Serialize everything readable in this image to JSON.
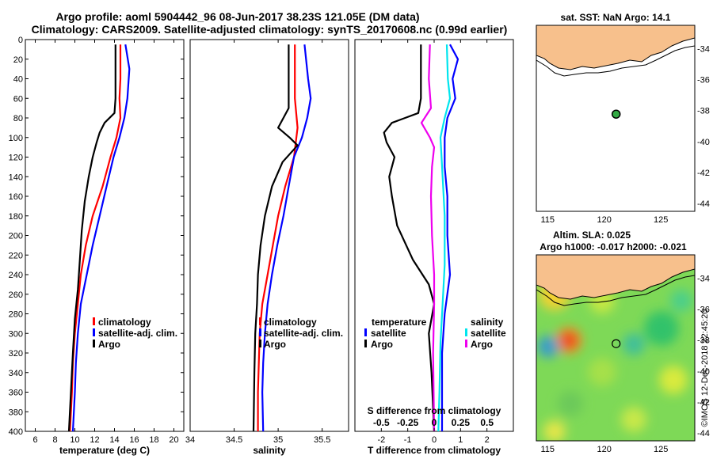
{
  "title": {
    "line1": "Argo profile: aoml 5904442_96 08-Jun-2017 38.23S 121.05E (DM data)",
    "line2": "Climatology: CARS2009. Satellite-adjusted climatology: synTS_20170608.nc (0.99d earlier)"
  },
  "colors": {
    "climatology": "#ff0000",
    "satellite_adj": "#0000ff",
    "argo": "#000000",
    "sat_salinity": "#00e5ee",
    "argo_salinity": "#ee00ee",
    "land": "#f7c08c"
  },
  "chart_data": [
    {
      "type": "line",
      "id": "temperature",
      "xlabel": "temperature (deg C)",
      "ylabel": "",
      "xlim": [
        5,
        21
      ],
      "ylim": [
        400,
        0
      ],
      "xticks": [
        6,
        8,
        10,
        12,
        14,
        16,
        18,
        20
      ],
      "yticks": [
        0,
        20,
        40,
        60,
        80,
        100,
        120,
        140,
        160,
        180,
        200,
        220,
        240,
        260,
        280,
        300,
        320,
        340,
        360,
        380,
        400
      ],
      "legend": [
        "climatology",
        "satellite-adj. clim.",
        "Argo"
      ],
      "series": [
        {
          "name": "climatology",
          "color": "#ff0000",
          "points": [
            [
              14.6,
              5
            ],
            [
              14.6,
              40
            ],
            [
              14.5,
              60
            ],
            [
              14.6,
              80
            ],
            [
              14.2,
              100
            ],
            [
              13.6,
              120
            ],
            [
              12.8,
              150
            ],
            [
              11.8,
              180
            ],
            [
              11.1,
              210
            ],
            [
              10.6,
              240
            ],
            [
              10.3,
              270
            ],
            [
              10.0,
              300
            ],
            [
              9.8,
              330
            ],
            [
              9.7,
              360
            ],
            [
              9.5,
              400
            ]
          ]
        },
        {
          "name": "satellite-adj. clim.",
          "color": "#0000ff",
          "points": [
            [
              15.1,
              5
            ],
            [
              15.5,
              30
            ],
            [
              15.3,
              60
            ],
            [
              15.0,
              80
            ],
            [
              14.5,
              100
            ],
            [
              13.9,
              120
            ],
            [
              13.2,
              150
            ],
            [
              12.5,
              180
            ],
            [
              11.8,
              210
            ],
            [
              11.2,
              240
            ],
            [
              10.6,
              270
            ],
            [
              10.3,
              300
            ],
            [
              10.1,
              330
            ],
            [
              10.0,
              360
            ],
            [
              9.8,
              400
            ]
          ]
        },
        {
          "name": "Argo",
          "color": "#000000",
          "points": [
            [
              14.1,
              5
            ],
            [
              14.1,
              60
            ],
            [
              14.0,
              75
            ],
            [
              13.0,
              85
            ],
            [
              12.5,
              95
            ],
            [
              12.2,
              105
            ],
            [
              11.8,
              120
            ],
            [
              11.4,
              140
            ],
            [
              11.0,
              165
            ],
            [
              10.7,
              195
            ],
            [
              10.5,
              225
            ],
            [
              10.3,
              255
            ],
            [
              10.0,
              285
            ],
            [
              9.8,
              320
            ],
            [
              9.6,
              360
            ],
            [
              9.4,
              400
            ]
          ]
        }
      ]
    },
    {
      "type": "line",
      "id": "salinity",
      "xlabel": "salinity",
      "ylabel": "",
      "xlim": [
        34,
        35.8
      ],
      "ylim": [
        400,
        0
      ],
      "xticks": [
        34,
        34.5,
        35,
        35.5
      ],
      "xticklabels": [
        "34",
        "34.5",
        "35",
        "35.5"
      ],
      "legend": [
        "climatology",
        "satellite-adj. clim.",
        "Argo"
      ],
      "series": [
        {
          "name": "climatology",
          "color": "#ff0000",
          "points": [
            [
              35.19,
              5
            ],
            [
              35.19,
              60
            ],
            [
              35.22,
              90
            ],
            [
              35.18,
              120
            ],
            [
              35.08,
              150
            ],
            [
              35.0,
              180
            ],
            [
              34.94,
              210
            ],
            [
              34.88,
              240
            ],
            [
              34.82,
              270
            ],
            [
              34.79,
              300
            ],
            [
              34.78,
              330
            ],
            [
              34.77,
              360
            ],
            [
              34.77,
              400
            ]
          ]
        },
        {
          "name": "satellite-adj. clim.",
          "color": "#0000ff",
          "points": [
            [
              35.3,
              5
            ],
            [
              35.34,
              40
            ],
            [
              35.37,
              60
            ],
            [
              35.33,
              80
            ],
            [
              35.27,
              100
            ],
            [
              35.18,
              120
            ],
            [
              35.12,
              150
            ],
            [
              35.06,
              180
            ],
            [
              34.99,
              210
            ],
            [
              34.93,
              240
            ],
            [
              34.88,
              270
            ],
            [
              34.85,
              300
            ],
            [
              34.83,
              330
            ],
            [
              34.82,
              360
            ],
            [
              34.83,
              400
            ]
          ]
        },
        {
          "name": "Argo",
          "color": "#000000",
          "points": [
            [
              35.12,
              5
            ],
            [
              35.12,
              70
            ],
            [
              35.0,
              90
            ],
            [
              35.13,
              100
            ],
            [
              35.22,
              108
            ],
            [
              35.05,
              125
            ],
            [
              34.93,
              150
            ],
            [
              34.85,
              180
            ],
            [
              34.8,
              210
            ],
            [
              34.77,
              240
            ],
            [
              34.76,
              270
            ],
            [
              34.74,
              300
            ],
            [
              34.73,
              340
            ],
            [
              34.72,
              400
            ]
          ]
        }
      ]
    },
    {
      "type": "line",
      "id": "difference",
      "xlabel": "T difference from climatology",
      "xlabel_top": "S difference from climatology",
      "xlim": [
        -3,
        3
      ],
      "ylim": [
        400,
        0
      ],
      "xticks": [
        -2,
        -1,
        0,
        1,
        2
      ],
      "xticks_top": [
        -0.5,
        -0.25,
        0,
        0.25,
        0.5
      ],
      "xticklabels_top": [
        "-0.5",
        "-0.25",
        "0",
        "0.25",
        "0.5"
      ],
      "legend_left_title": "temperature",
      "legend_right_title": "salinity",
      "legend_left": [
        "satellite",
        "Argo"
      ],
      "legend_right": [
        "satellite",
        "Argo"
      ],
      "series": [
        {
          "name": "T satellite",
          "color": "#0000ff",
          "points": [
            [
              0.6,
              5
            ],
            [
              0.9,
              20
            ],
            [
              0.7,
              40
            ],
            [
              0.8,
              60
            ],
            [
              0.5,
              80
            ],
            [
              0.4,
              100
            ],
            [
              0.4,
              130
            ],
            [
              0.5,
              160
            ],
            [
              0.5,
              200
            ],
            [
              0.6,
              240
            ],
            [
              0.4,
              280
            ],
            [
              0.3,
              320
            ],
            [
              0.3,
              360
            ],
            [
              0.3,
              400
            ]
          ]
        },
        {
          "name": "T Argo",
          "color": "#000000",
          "points": [
            [
              -0.5,
              5
            ],
            [
              -0.5,
              60
            ],
            [
              -0.6,
              75
            ],
            [
              -1.6,
              85
            ],
            [
              -1.9,
              95
            ],
            [
              -1.8,
              105
            ],
            [
              -1.5,
              120
            ],
            [
              -1.7,
              140
            ],
            [
              -1.6,
              160
            ],
            [
              -1.4,
              190
            ],
            [
              -0.8,
              225
            ],
            [
              -0.2,
              250
            ],
            [
              0.0,
              270
            ],
            [
              -0.2,
              300
            ],
            [
              -0.1,
              340
            ],
            [
              0.0,
              400
            ]
          ]
        },
        {
          "name": "S satellite",
          "color": "#00e5ee",
          "points": [
            [
              0.12,
              5
            ],
            [
              0.13,
              40
            ],
            [
              0.15,
              60
            ],
            [
              0.1,
              80
            ],
            [
              0.06,
              100
            ],
            [
              0.08,
              140
            ],
            [
              0.1,
              180
            ],
            [
              0.1,
              230
            ],
            [
              0.08,
              270
            ],
            [
              0.06,
              310
            ],
            [
              0.05,
              360
            ],
            [
              0.04,
              400
            ]
          ]
        },
        {
          "name": "S Argo",
          "color": "#ee00ee",
          "points": [
            [
              -0.04,
              5
            ],
            [
              -0.05,
              40
            ],
            [
              -0.03,
              70
            ],
            [
              -0.12,
              85
            ],
            [
              -0.04,
              100
            ],
            [
              0.0,
              110
            ],
            [
              -0.02,
              130
            ],
            [
              -0.03,
              160
            ],
            [
              -0.02,
              200
            ],
            [
              0.0,
              240
            ],
            [
              0.0,
              270
            ],
            [
              -0.01,
              320
            ],
            [
              0.0,
              400
            ]
          ]
        }
      ]
    },
    {
      "type": "map",
      "id": "sst-map",
      "title": "sat. SST: NaN Argo: 14.1",
      "xlim": [
        114,
        128
      ],
      "ylim": [
        -44.5,
        -32.5
      ],
      "xticks": [
        115,
        120,
        125
      ],
      "yticks": [
        -34,
        -36,
        -38,
        -40,
        -42,
        -44
      ],
      "yticklabels": [
        "-34",
        "-36",
        "-38",
        "-40",
        "-42",
        "-44"
      ],
      "marker": {
        "lon": 121.05,
        "lat": -38.23
      }
    },
    {
      "type": "heatmap",
      "id": "sla-map",
      "title_line1": "Altim. SLA: 0.025",
      "title_line2": "Argo h1000: -0.017 h2000: -0.021",
      "xlim": [
        114,
        128
      ],
      "ylim": [
        -44.5,
        -32.5
      ],
      "xticks": [
        115,
        120,
        125
      ],
      "yticks": [
        -34,
        -36,
        -38,
        -40,
        -42,
        -44
      ],
      "yticklabels": [
        "-34",
        "-36",
        "-38",
        "-40",
        "-42",
        "-44"
      ],
      "marker": {
        "lon": 121.05,
        "lat": -38.23
      }
    }
  ],
  "credit": "©IMOS 12-Dec-2018 22:45:20"
}
